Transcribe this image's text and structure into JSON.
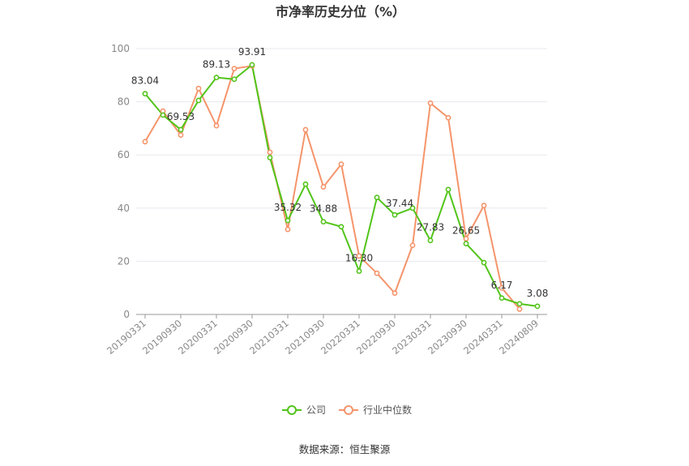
{
  "chart_data": {
    "type": "line",
    "title": "市净率历史分位（%）",
    "source_text": "数据来源：恒生聚源",
    "ylim": [
      0,
      100
    ],
    "yticks": [
      0,
      20,
      40,
      60,
      80,
      100
    ],
    "x_tick_labels": [
      "20190331",
      "20190930",
      "20200331",
      "20200930",
      "20210331",
      "20210930",
      "20220331",
      "20220930",
      "20230331",
      "20230930",
      "20240331",
      "20240809"
    ],
    "legend_position": "bottom-center",
    "grid": true,
    "series": [
      {
        "name": "公司",
        "color": "#52c41a",
        "values": [
          83.04,
          75,
          69.53,
          80.5,
          89.13,
          88.5,
          93.91,
          59,
          35.32,
          49,
          34.88,
          33,
          16.3,
          44,
          37.44,
          40,
          27.83,
          47,
          26.65,
          19.5,
          6.17,
          4,
          3.08
        ],
        "labels": {
          "0": "83.04",
          "2": "69.53",
          "4": "89.13",
          "6": "93.91",
          "8": "35.32",
          "10": "34.88",
          "12": "16.30",
          "14": "37.44",
          "16": "27.83",
          "18": "26.65",
          "20": "6.17",
          "22": "3.08"
        }
      },
      {
        "name": "行业中位数",
        "color": "#f5946b",
        "values": [
          65,
          76.5,
          67.5,
          85,
          71,
          92.5,
          93.5,
          61,
          32,
          69.5,
          48,
          56.5,
          22,
          15.5,
          8,
          26,
          79.5,
          74,
          28.5,
          41,
          10,
          2
        ]
      }
    ]
  }
}
